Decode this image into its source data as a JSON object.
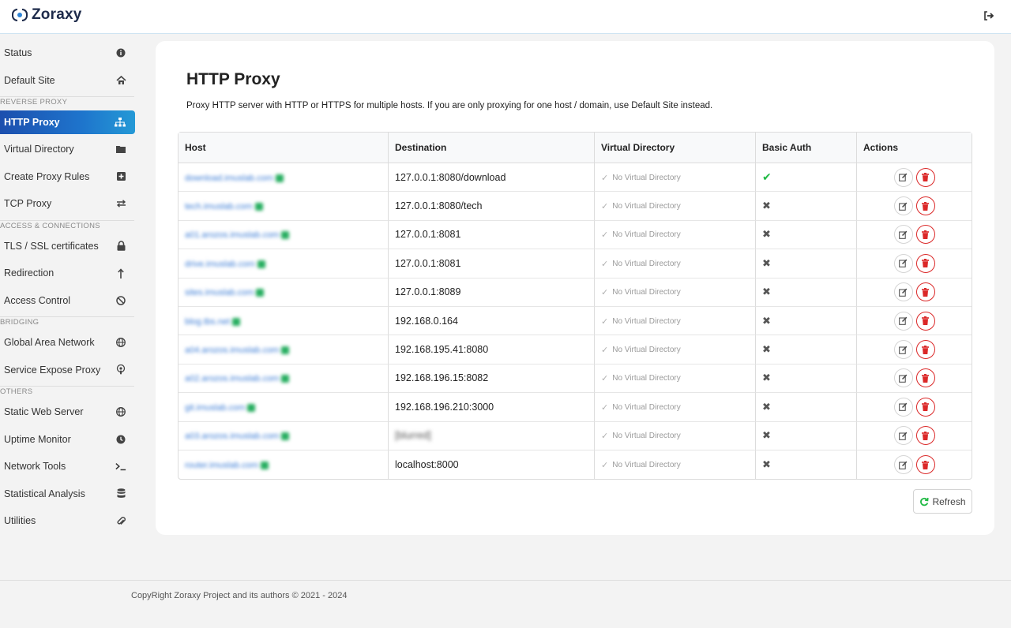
{
  "app": {
    "title": "Zoraxy"
  },
  "sidebar": {
    "items_top": [
      {
        "label": "Status",
        "icon": "info-circle-icon"
      },
      {
        "label": "Default Site",
        "icon": "home-icon"
      }
    ],
    "sections": [
      {
        "header": "REVERSE PROXY",
        "items": [
          {
            "label": "HTTP Proxy",
            "icon": "sitemap-icon",
            "active": true
          },
          {
            "label": "Virtual Directory",
            "icon": "folder-icon"
          },
          {
            "label": "Create Proxy Rules",
            "icon": "plus-square-icon"
          },
          {
            "label": "TCP Proxy",
            "icon": "exchange-icon"
          }
        ]
      },
      {
        "header": "ACCESS & CONNECTIONS",
        "items": [
          {
            "label": "TLS / SSL certificates",
            "icon": "lock-icon"
          },
          {
            "label": "Redirection",
            "icon": "level-up-icon"
          },
          {
            "label": "Access Control",
            "icon": "ban-icon"
          }
        ]
      },
      {
        "header": "BRIDGING",
        "items": [
          {
            "label": "Global Area Network",
            "icon": "globe-icon"
          },
          {
            "label": "Service Expose Proxy",
            "icon": "podcast-icon"
          }
        ]
      },
      {
        "header": "OTHERS",
        "items": [
          {
            "label": "Static Web Server",
            "icon": "globe-icon"
          },
          {
            "label": "Uptime Monitor",
            "icon": "clock-icon"
          },
          {
            "label": "Network Tools",
            "icon": "terminal-icon"
          },
          {
            "label": "Statistical Analysis",
            "icon": "database-icon"
          },
          {
            "label": "Utilities",
            "icon": "paperclip-icon"
          }
        ]
      }
    ]
  },
  "main": {
    "title": "HTTP Proxy",
    "description": "Proxy HTTP server with HTTP or HTTPS for multiple hosts. If you are only proxying for one host / domain, use Default Site instead.",
    "table": {
      "headers": [
        "Host",
        "Destination",
        "Virtual Directory",
        "Basic Auth",
        "Actions"
      ],
      "rows": [
        {
          "host": "download.imuslab.com",
          "destination": "127.0.0.1:8080/download",
          "vdir": "No Virtual Directory",
          "auth": true
        },
        {
          "host": "tech.imuslab.com",
          "destination": "127.0.0.1:8080/tech",
          "vdir": "No Virtual Directory",
          "auth": false
        },
        {
          "host": "a01.arozos.imuslab.com",
          "destination": "127.0.0.1:8081",
          "vdir": "No Virtual Directory",
          "auth": false
        },
        {
          "host": "drive.imuslab.com",
          "destination": "127.0.0.1:8081",
          "vdir": "No Virtual Directory",
          "auth": false
        },
        {
          "host": "sites.imuslab.com",
          "destination": "127.0.0.1:8089",
          "vdir": "No Virtual Directory",
          "auth": false
        },
        {
          "host": "blog.tbs.net",
          "destination": "192.168.0.164",
          "vdir": "No Virtual Directory",
          "auth": false
        },
        {
          "host": "a04.arozos.imuslab.com",
          "destination": "192.168.195.41:8080",
          "vdir": "No Virtual Directory",
          "auth": false
        },
        {
          "host": "a02.arozos.imuslab.com",
          "destination": "192.168.196.15:8082",
          "vdir": "No Virtual Directory",
          "auth": false
        },
        {
          "host": "git.imuslab.com",
          "destination": "192.168.196.210:3000",
          "vdir": "No Virtual Directory",
          "auth": false
        },
        {
          "host": "a03.arozos.imuslab.com",
          "destination": "[blurred]",
          "vdir": "No Virtual Directory",
          "auth": false
        },
        {
          "host": "router.imuslab.com",
          "destination": "localhost:8000",
          "vdir": "No Virtual Directory",
          "auth": false
        }
      ]
    },
    "refresh_label": "Refresh"
  },
  "footer": {
    "text": "CopyRight Zoraxy Project and its authors © 2021 - 2024"
  },
  "colors": {
    "accent": "#1e74cc",
    "success": "#21ba45",
    "danger": "#db2828"
  }
}
